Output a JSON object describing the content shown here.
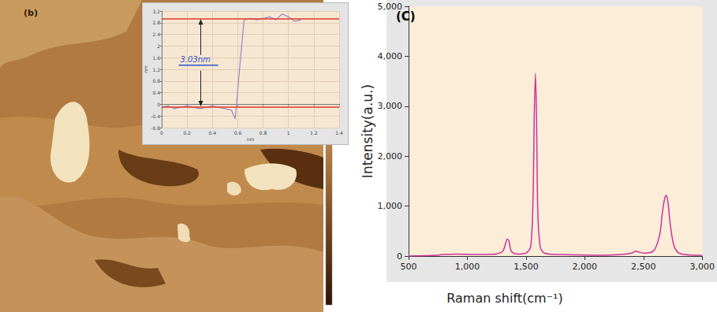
{
  "afm_image": {
    "label": "(b)"
  },
  "chart_data": [
    {
      "type": "line",
      "x_label": "nm",
      "y_label": "nm",
      "annotation": "3.03nm",
      "reference_lines": [
        -0.1,
        2.95
      ],
      "x": [
        0,
        0.05,
        0.1,
        0.15,
        0.2,
        0.25,
        0.3,
        0.35,
        0.4,
        0.45,
        0.5,
        0.55,
        0.58,
        0.62,
        0.65,
        0.7,
        0.75,
        0.8,
        0.85,
        0.9,
        0.95,
        1.0,
        1.05,
        1.1
      ],
      "values": [
        -0.1,
        -0.05,
        -0.15,
        -0.1,
        -0.05,
        -0.1,
        -0.15,
        -0.1,
        -0.05,
        -0.1,
        -0.15,
        -0.2,
        -0.5,
        1.5,
        2.9,
        2.95,
        2.9,
        2.95,
        3.0,
        2.9,
        3.1,
        3.0,
        2.85,
        2.9
      ],
      "color": "#9b86c4",
      "xlim": [
        0,
        1.4
      ],
      "xticks": [
        0,
        0.2,
        0.4,
        0.6,
        0.8,
        1,
        1.2,
        1.4
      ],
      "ylim": [
        -0.8,
        3.2
      ],
      "yticks": [
        -0.8,
        -0.4,
        0,
        0.4,
        0.8,
        1.2,
        1.6,
        2,
        2.4,
        2.8,
        3.2
      ],
      "grid": true
    },
    {
      "type": "line",
      "title": "(C)",
      "x_label": "Raman shift(cm⁻¹)",
      "y_label": "Intensity(a.u.)",
      "x": [
        500,
        600,
        700,
        800,
        900,
        1000,
        1100,
        1200,
        1250,
        1300,
        1320,
        1340,
        1355,
        1370,
        1400,
        1450,
        1500,
        1540,
        1560,
        1570,
        1580,
        1590,
        1600,
        1620,
        1650,
        1700,
        1800,
        1900,
        2000,
        2100,
        2200,
        2300,
        2400,
        2440,
        2460,
        2500,
        2560,
        2600,
        2640,
        2660,
        2680,
        2695,
        2710,
        2730,
        2760,
        2800,
        2850,
        2900,
        3000
      ],
      "values": [
        0,
        5,
        10,
        30,
        40,
        35,
        30,
        35,
        45,
        90,
        200,
        340,
        300,
        120,
        50,
        40,
        60,
        200,
        1200,
        2800,
        3650,
        2700,
        900,
        200,
        70,
        40,
        30,
        25,
        20,
        15,
        20,
        30,
        60,
        100,
        80,
        60,
        70,
        150,
        450,
        850,
        1150,
        1220,
        1050,
        600,
        200,
        60,
        30,
        20,
        15
      ],
      "color": "#cc3399",
      "xlim": [
        500,
        3000
      ],
      "xticks": [
        500,
        1000,
        1500,
        2000,
        2500,
        3000
      ],
      "ylim": [
        0,
        5000
      ],
      "yticks": [
        0,
        1000,
        2000,
        3000,
        4000,
        5000
      ],
      "grid": false
    }
  ]
}
